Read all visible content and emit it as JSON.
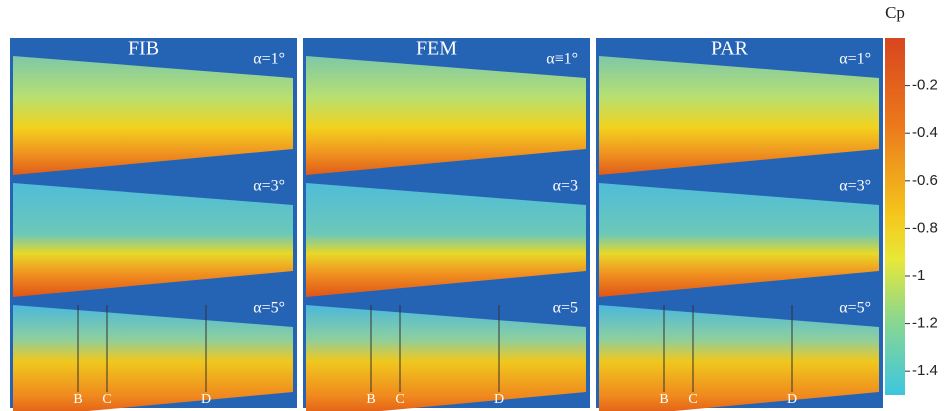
{
  "colorbar": {
    "title": "Cp",
    "ylim": [
      -1.5,
      0
    ],
    "ticks": [
      -0.2,
      -0.4,
      -0.6,
      -0.8,
      -1,
      -1.2,
      -1.4
    ]
  },
  "panels": [
    {
      "title": "FIB",
      "angles": [
        "α=1°",
        "α=3°",
        "α=5°"
      ],
      "sections": [
        "B",
        "C",
        "D"
      ]
    },
    {
      "title": "FEM",
      "angles": [
        "α≡1°",
        "α=3",
        "α=5"
      ],
      "sections": [
        "B",
        "C",
        "D"
      ]
    },
    {
      "title": "PAR",
      "angles": [
        "α=1°",
        "α=3°",
        "α=5°"
      ],
      "sections": [
        "B",
        "C",
        "D"
      ]
    }
  ]
}
